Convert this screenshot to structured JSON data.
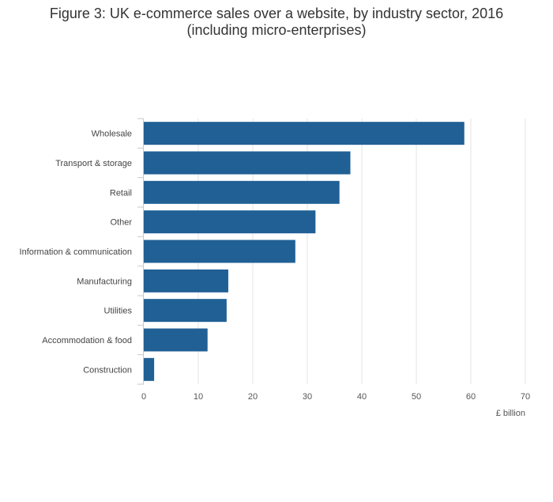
{
  "chart_data": {
    "type": "bar",
    "orientation": "horizontal",
    "title_lines": [
      "Figure 3: UK e-commerce sales over a website, by industry sector, 2016",
      "(including micro-enterprises)"
    ],
    "categories": [
      "Wholesale",
      "Transport & storage",
      "Retail",
      "Other",
      "Information & communication",
      "Manufacturing",
      "Utilities",
      "Accommodation & food",
      "Construction"
    ],
    "values": [
      58.8,
      37.9,
      35.9,
      31.5,
      27.8,
      15.5,
      15.2,
      11.7,
      1.9
    ],
    "xlabel": "£ billion",
    "ylabel": "",
    "xlim": [
      0,
      70
    ],
    "xticks": [
      0,
      10,
      20,
      30,
      40,
      50,
      60,
      70
    ],
    "grid": true,
    "colors": {
      "bar": "#206095",
      "grid": "#e3e3e3",
      "axis": "#c9c9c9"
    }
  }
}
